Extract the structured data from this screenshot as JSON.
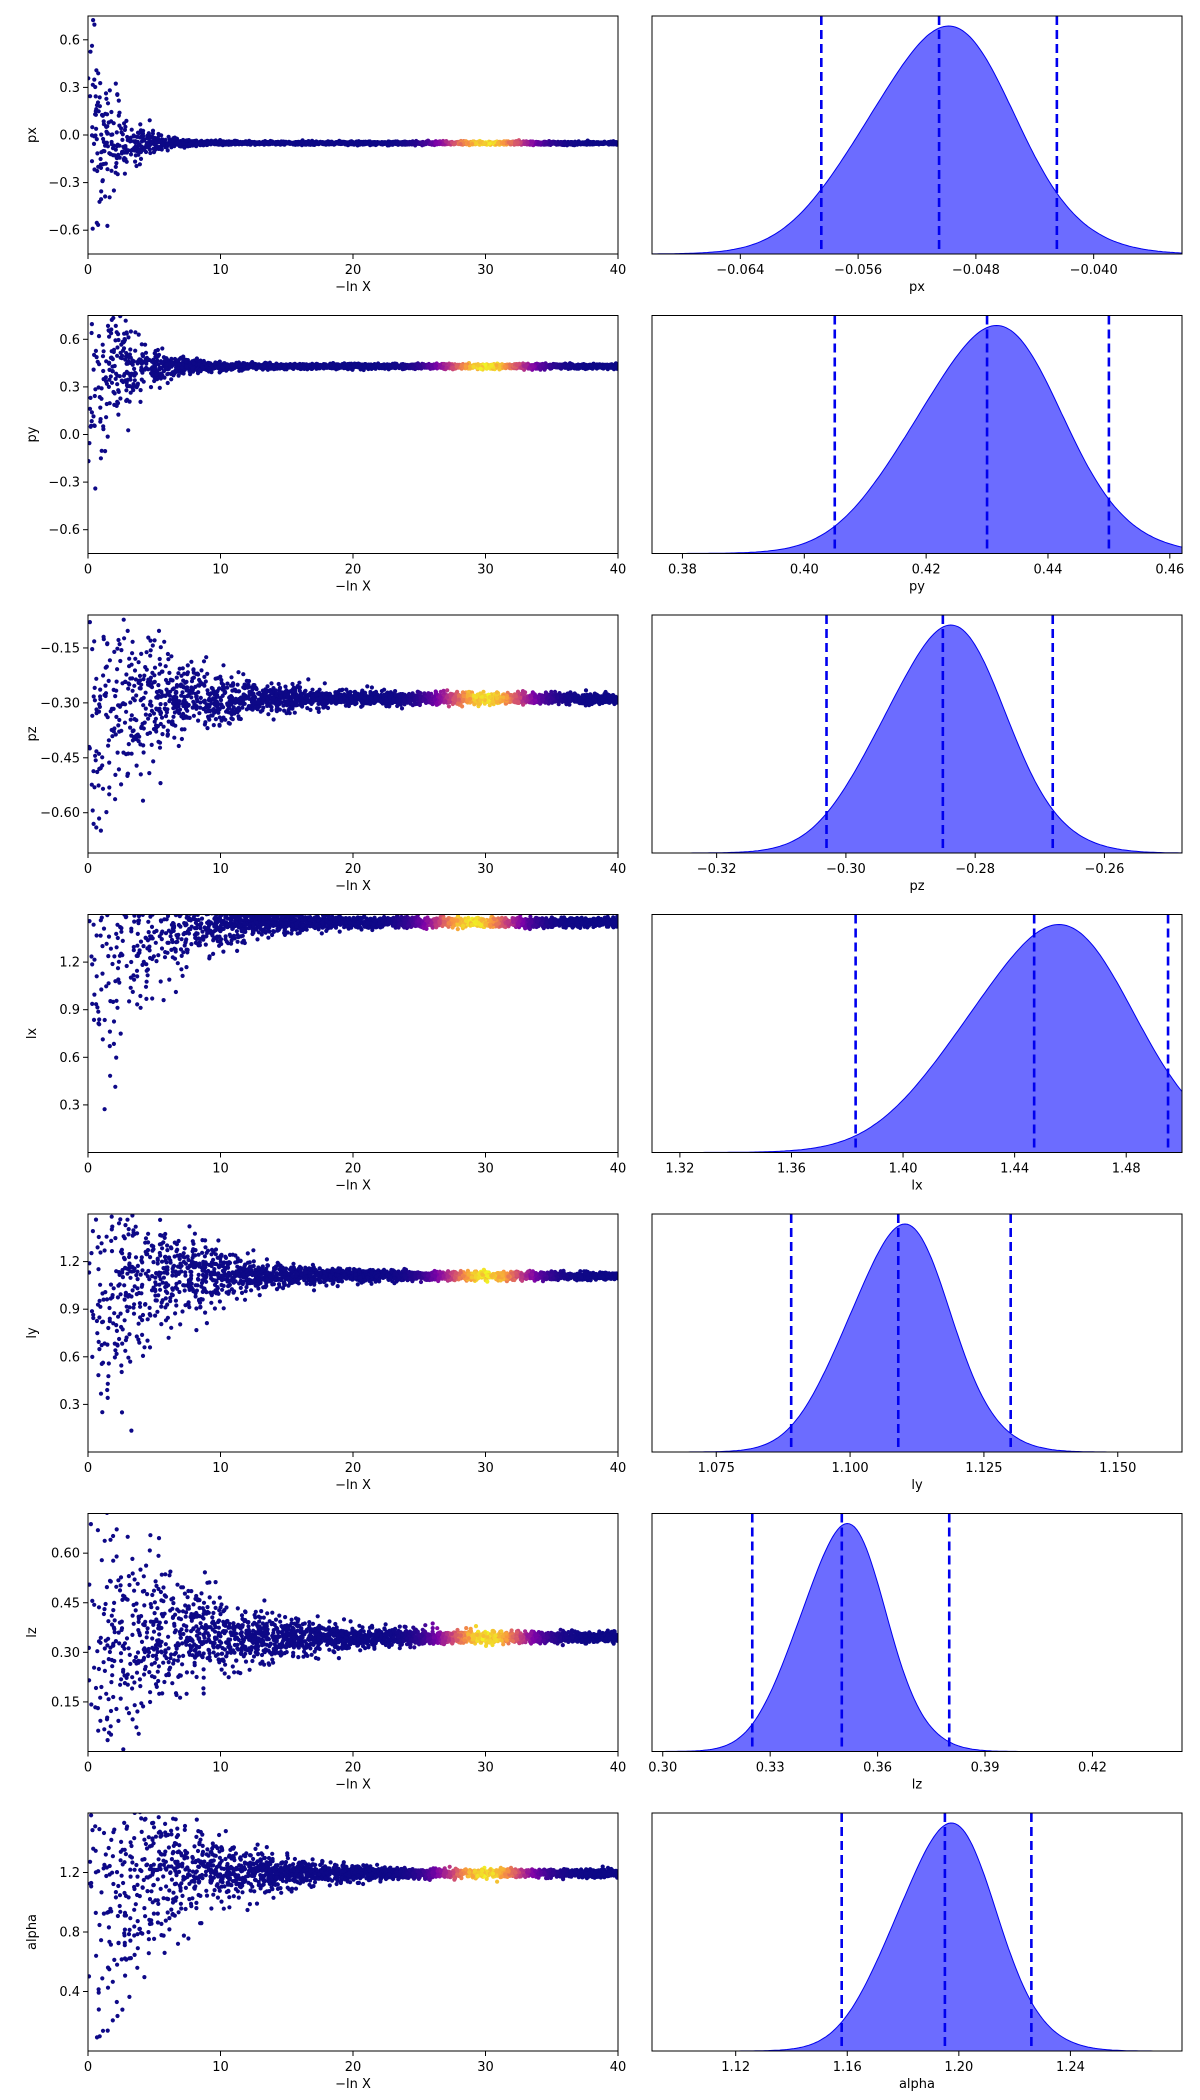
{
  "chart_data": [
    {
      "type": "scatter",
      "xlabel": "−ln X",
      "ylabel": "px",
      "xlim": [
        0,
        40
      ],
      "ylim": [
        -0.75,
        0.75
      ],
      "xticks": [
        0,
        10,
        20,
        30,
        40
      ],
      "yticks": [
        -0.6,
        -0.3,
        0.0,
        0.3,
        0.6
      ],
      "ytick_labels": [
        "−0.6",
        "−0.3",
        "0.0",
        "0.3",
        "0.6"
      ],
      "center": -0.051,
      "spread_start": 0.75,
      "narrow_rate": 0.55,
      "hot_x": 30,
      "colormap": [
        "#0d0887",
        "#7e03a8",
        "#cc4778",
        "#f89540",
        "#f0f921"
      ]
    },
    {
      "type": "area",
      "xlabel": "px",
      "xlim": [
        -0.07,
        -0.034
      ],
      "xticks": [
        -0.064,
        -0.056,
        -0.048,
        -0.04
      ],
      "xtick_labels": [
        "−0.064",
        "−0.056",
        "−0.048",
        "−0.040"
      ],
      "peak": -0.0505,
      "sigma": 0.005,
      "quantile_lines": [
        -0.0585,
        -0.0505,
        -0.0425
      ],
      "fill_color": "#6464ff",
      "line_color": "#0000ee"
    },
    {
      "type": "scatter",
      "xlabel": "−ln X",
      "ylabel": "py",
      "xlim": [
        0,
        40
      ],
      "ylim": [
        -0.75,
        0.75
      ],
      "xticks": [
        0,
        10,
        20,
        30,
        40
      ],
      "yticks": [
        -0.6,
        -0.3,
        0.0,
        0.3,
        0.6
      ],
      "ytick_labels": [
        "−0.6",
        "−0.3",
        "0.0",
        "0.3",
        "0.6"
      ],
      "center": 0.43,
      "spread_start": 0.95,
      "narrow_rate": 0.45,
      "hot_x": 30,
      "colormap": [
        "#0d0887",
        "#7e03a8",
        "#cc4778",
        "#f89540",
        "#f0f921"
      ]
    },
    {
      "type": "area",
      "xlabel": "py",
      "xlim": [
        0.375,
        0.462
      ],
      "xticks": [
        0.38,
        0.4,
        0.42,
        0.44,
        0.46
      ],
      "xtick_labels": [
        "0.38",
        "0.40",
        "0.42",
        "0.44",
        "0.46"
      ],
      "peak": 0.43,
      "sigma": 0.012,
      "quantile_lines": [
        0.405,
        0.43,
        0.45
      ],
      "fill_color": "#6464ff",
      "line_color": "#0000ee"
    },
    {
      "type": "scatter",
      "xlabel": "−ln X",
      "ylabel": "pz",
      "xlim": [
        0,
        40
      ],
      "ylim": [
        -0.71,
        -0.06
      ],
      "xticks": [
        0,
        10,
        20,
        30,
        40
      ],
      "yticks": [
        -0.6,
        -0.45,
        -0.3,
        -0.15
      ],
      "ytick_labels": [
        "−0.60",
        "−0.45",
        "−0.30",
        "−0.15"
      ],
      "center": -0.288,
      "spread_start": 0.38,
      "narrow_rate": 0.2,
      "hot_x": 30,
      "colormap": [
        "#0d0887",
        "#7e03a8",
        "#cc4778",
        "#f89540",
        "#f0f921"
      ]
    },
    {
      "type": "area",
      "xlabel": "pz",
      "xlim": [
        -0.33,
        -0.248
      ],
      "xticks": [
        -0.32,
        -0.3,
        -0.28,
        -0.26
      ],
      "xtick_labels": [
        "−0.32",
        "−0.30",
        "−0.28",
        "−0.26"
      ],
      "peak": -0.285,
      "sigma": 0.0095,
      "quantile_lines": [
        -0.303,
        -0.285,
        -0.268
      ],
      "fill_color": "#6464ff",
      "line_color": "#0000ee"
    },
    {
      "type": "scatter",
      "xlabel": "−ln X",
      "ylabel": "lx",
      "xlim": [
        0,
        40
      ],
      "ylim": [
        0.0,
        1.5
      ],
      "xticks": [
        0,
        10,
        20,
        30,
        40
      ],
      "yticks": [
        0.3,
        0.6,
        0.9,
        1.2
      ],
      "ytick_labels": [
        "0.3",
        "0.6",
        "0.9",
        "1.2"
      ],
      "center": 1.45,
      "spread_start": 1.45,
      "narrow_rate": 0.25,
      "hot_x": 29,
      "colormap": [
        "#0d0887",
        "#7e03a8",
        "#cc4778",
        "#f89540",
        "#f0f921"
      ]
    },
    {
      "type": "area",
      "xlabel": "lx",
      "xlim": [
        1.31,
        1.5
      ],
      "xticks": [
        1.32,
        1.36,
        1.4,
        1.44,
        1.48
      ],
      "xtick_labels": [
        "1.32",
        "1.36",
        "1.40",
        "1.44",
        "1.48"
      ],
      "peak": 1.452,
      "sigma": 0.03,
      "quantile_lines": [
        1.383,
        1.447,
        1.495
      ],
      "fill_color": "#6464ff",
      "line_color": "#0000ee"
    },
    {
      "type": "scatter",
      "xlabel": "−ln X",
      "ylabel": "ly",
      "xlim": [
        0,
        40
      ],
      "ylim": [
        0.0,
        1.5
      ],
      "xticks": [
        0,
        10,
        20,
        30,
        40
      ],
      "yticks": [
        0.3,
        0.6,
        0.9,
        1.2
      ],
      "ytick_labels": [
        "0.3",
        "0.6",
        "0.9",
        "1.2"
      ],
      "center": 1.11,
      "spread_start": 1.1,
      "narrow_rate": 0.22,
      "hot_x": 30,
      "colormap": [
        "#0d0887",
        "#7e03a8",
        "#cc4778",
        "#f89540",
        "#f0f921"
      ]
    },
    {
      "type": "area",
      "xlabel": "ly",
      "xlim": [
        1.063,
        1.162
      ],
      "xticks": [
        1.075,
        1.1,
        1.125,
        1.15
      ],
      "xtick_labels": [
        "1.075",
        "1.100",
        "1.125",
        "1.150"
      ],
      "peak": 1.109,
      "sigma": 0.0095,
      "quantile_lines": [
        1.089,
        1.109,
        1.13
      ],
      "fill_color": "#6464ff",
      "line_color": "#0000ee"
    },
    {
      "type": "scatter",
      "xlabel": "−ln X",
      "ylabel": "lz",
      "xlim": [
        0,
        40
      ],
      "ylim": [
        0.0,
        0.72
      ],
      "xticks": [
        0,
        10,
        20,
        30,
        40
      ],
      "yticks": [
        0.15,
        0.3,
        0.45,
        0.6
      ],
      "ytick_labels": [
        "0.15",
        "0.30",
        "0.45",
        "0.60"
      ],
      "center": 0.345,
      "spread_start": 0.4,
      "narrow_rate": 0.15,
      "hot_x": 30,
      "colormap": [
        "#0d0887",
        "#7e03a8",
        "#cc4778",
        "#f89540",
        "#f0f921"
      ]
    },
    {
      "type": "area",
      "xlabel": "lz",
      "xlim": [
        0.297,
        0.445
      ],
      "xticks": [
        0.3,
        0.33,
        0.36,
        0.39,
        0.42
      ],
      "xtick_labels": [
        "0.30",
        "0.33",
        "0.36",
        "0.39",
        "0.42"
      ],
      "peak": 0.35,
      "sigma": 0.012,
      "quantile_lines": [
        0.325,
        0.35,
        0.38
      ],
      "fill_color": "#6464ff",
      "line_color": "#0000ee"
    },
    {
      "type": "scatter",
      "xlabel": "−ln X",
      "ylabel": "alpha",
      "xlim": [
        0,
        40
      ],
      "ylim": [
        0.0,
        1.6
      ],
      "xticks": [
        0,
        10,
        20,
        30,
        40
      ],
      "yticks": [
        0.4,
        0.8,
        1.2
      ],
      "ytick_labels": [
        "0.4",
        "0.8",
        "1.2"
      ],
      "center": 1.195,
      "spread_start": 1.3,
      "narrow_rate": 0.2,
      "hot_x": 30,
      "colormap": [
        "#0d0887",
        "#7e03a8",
        "#cc4778",
        "#f89540",
        "#f0f921"
      ]
    },
    {
      "type": "area",
      "xlabel": "alpha",
      "xlim": [
        1.09,
        1.28
      ],
      "xticks": [
        1.12,
        1.16,
        1.2,
        1.24
      ],
      "xtick_labels": [
        "1.12",
        "1.16",
        "1.20",
        "1.24"
      ],
      "peak": 1.195,
      "sigma": 0.018,
      "quantile_lines": [
        1.158,
        1.195,
        1.226
      ],
      "fill_color": "#6464ff",
      "line_color": "#0000ee"
    }
  ]
}
